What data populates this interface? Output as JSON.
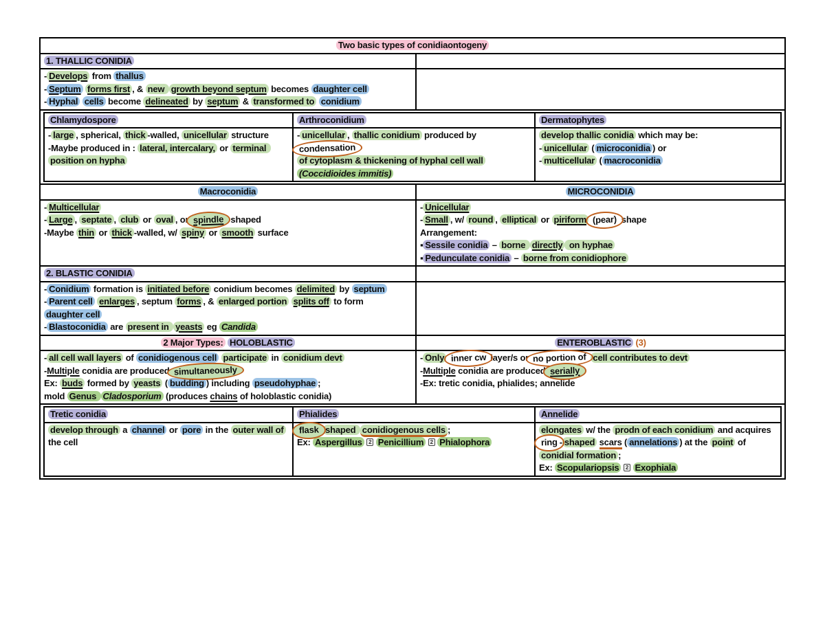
{
  "colors": {
    "green": "#c6e0b4",
    "genus_green": "#a9d18e",
    "blue": "#9dc3e6",
    "purple": "#b7b3da",
    "pink": "#f8c3d3",
    "orange": "#c0611f"
  },
  "title": [
    {
      "t": "Two basic types of conidiaontogeny",
      "h": "k"
    }
  ],
  "thallic": {
    "header": [
      {
        "t": "1. THALLIC CONIDIA",
        "h": "p"
      }
    ],
    "body": [
      [
        {
          "t": "-"
        },
        {
          "t": "Develops",
          "h": "g",
          "u": 1
        },
        {
          "t": " from "
        },
        {
          "t": "thallus",
          "h": "b"
        }
      ],
      [
        {
          "t": "-"
        },
        {
          "t": "Septum",
          "h": "b",
          "u": 1
        },
        {
          "t": " "
        },
        {
          "t": "forms first",
          "h": "g",
          "u": 1
        },
        {
          "t": ", & "
        },
        {
          "t": "new ",
          "h": "g"
        },
        {
          "t": "growth beyond septum",
          "h": "g",
          "u": 1
        },
        {
          "t": " becomes "
        },
        {
          "t": "daughter cell",
          "h": "b"
        }
      ],
      [
        {
          "t": "-"
        },
        {
          "t": "Hyphal",
          "h": "b"
        },
        {
          "t": " "
        },
        {
          "t": "cells",
          "h": "b"
        },
        {
          "t": " become "
        },
        {
          "t": "delineated",
          "h": "g",
          "u": 1
        },
        {
          "t": " by "
        },
        {
          "t": "septum",
          "h": "g",
          "u": 1
        },
        {
          "t": " & "
        },
        {
          "t": "transformed to",
          "h": "g"
        },
        {
          "t": " "
        },
        {
          "t": "conidium",
          "h": "b"
        }
      ]
    ]
  },
  "sub_top": {
    "columns": [
      {
        "header": [
          {
            "t": "Chlamydospore",
            "h": "p"
          }
        ],
        "body": [
          [
            {
              "t": "-"
            },
            {
              "t": "large",
              "h": "g"
            },
            {
              "t": ", spherical, "
            },
            {
              "t": "thick",
              "h": "g"
            },
            {
              "t": "-walled, "
            },
            {
              "t": "unicellular",
              "h": "g"
            },
            {
              "t": " structure"
            }
          ],
          [
            {
              "t": "-Maybe produced in : "
            },
            {
              "t": "lateral, intercalary,",
              "h": "g"
            },
            {
              "t": " or "
            },
            {
              "t": "terminal position on hypha",
              "h": "g"
            }
          ]
        ]
      },
      {
        "header": [
          {
            "t": "Arthroconidium",
            "h": "p"
          }
        ],
        "body": [
          [
            {
              "t": "-"
            },
            {
              "t": "unicellular",
              "h": "g"
            },
            {
              "t": ", "
            },
            {
              "t": "thallic conidium",
              "h": "g"
            },
            {
              "t": " produced by "
            },
            {
              "t": "condensation",
              "c": 1
            }
          ],
          [
            {
              "t": "of cytoplasm & thickening of hyphal cell wall",
              "h": "g"
            }
          ],
          [
            {
              "t": "(Coccidioides immitis)",
              "h": "G",
              "i": 1
            }
          ]
        ]
      },
      {
        "header": [
          {
            "t": "Dermatophytes",
            "h": "p"
          }
        ],
        "body": [
          [
            {
              "t": "develop thallic conidia",
              "h": "g"
            },
            {
              "t": " which may be:"
            }
          ],
          [
            {
              "t": "-"
            },
            {
              "t": "unicellular",
              "h": "g"
            },
            {
              "t": " ("
            },
            {
              "t": "microconidia",
              "h": "b"
            },
            {
              "t": ") or"
            }
          ],
          [
            {
              "t": "-"
            },
            {
              "t": "multicellular",
              "h": "g"
            },
            {
              "t": " ("
            },
            {
              "t": "macroconidia",
              "h": "b"
            }
          ]
        ]
      }
    ]
  },
  "macro": {
    "header": [
      {
        "t": "Macroconidia",
        "h": "b"
      }
    ],
    "body": [
      [
        {
          "t": "-"
        },
        {
          "t": "Multicellular",
          "h": "g",
          "u": 1
        }
      ],
      [
        {
          "t": "-"
        },
        {
          "t": "Large",
          "h": "g",
          "u": 1
        },
        {
          "t": ", "
        },
        {
          "t": "septate",
          "h": "g"
        },
        {
          "t": ", "
        },
        {
          "t": "club",
          "h": "g"
        },
        {
          "t": " or "
        },
        {
          "t": "oval",
          "h": "g"
        },
        {
          "t": ", or "
        },
        {
          "t": "spindle",
          "h": "g",
          "u": 1,
          "c": 1
        },
        {
          "t": "- shaped"
        }
      ],
      [
        {
          "t": "-Maybe "
        },
        {
          "t": "thin",
          "h": "g",
          "u": 1
        },
        {
          "t": " or "
        },
        {
          "t": "thick",
          "h": "g",
          "u": 1
        },
        {
          "t": "-walled, w/ "
        },
        {
          "t": "spiny",
          "h": "g",
          "u": 1
        },
        {
          "t": " or "
        },
        {
          "t": "smooth",
          "h": "g",
          "u": 1
        },
        {
          "t": " surface"
        }
      ]
    ]
  },
  "micro": {
    "header": [
      {
        "t": "MICROCONIDIA",
        "h": "b"
      }
    ],
    "body": [
      [
        {
          "t": "-"
        },
        {
          "t": "Unicellular",
          "h": "g",
          "u": 1
        }
      ],
      [
        {
          "t": "-"
        },
        {
          "t": "Small",
          "h": "g",
          "u": 1
        },
        {
          "t": ", w/ "
        },
        {
          "t": "round",
          "h": "g"
        },
        {
          "t": ", "
        },
        {
          "t": "elliptical",
          "h": "g"
        },
        {
          "t": " or "
        },
        {
          "t": "piriform",
          "h": "g",
          "u": 1
        },
        {
          "t": " "
        },
        {
          "t": "(pear)",
          "c": 1
        },
        {
          "t": " shape"
        }
      ],
      [
        {
          "t": "Arrangement:"
        }
      ],
      [
        {
          "t": "▪"
        },
        {
          "t": "Sessile conidia",
          "h": "p"
        },
        {
          "t": " – "
        },
        {
          "t": "borne ",
          "h": "g"
        },
        {
          "t": "directly",
          "h": "g",
          "u": 1
        },
        {
          "t": " on hyphae",
          "h": "g"
        }
      ],
      [
        {
          "t": "▪"
        },
        {
          "t": "Pedunculate conidia",
          "h": "p"
        },
        {
          "t": " – "
        },
        {
          "t": "borne from conidiophore",
          "h": "g"
        }
      ]
    ]
  },
  "blastic": {
    "header": [
      {
        "t": "2. BLASTIC CONIDIA",
        "h": "p"
      }
    ],
    "body": [
      [
        {
          "t": "-"
        },
        {
          "t": "Conidium",
          "h": "b"
        },
        {
          "t": " formation is "
        },
        {
          "t": "initiated before",
          "h": "g",
          "u": 1
        },
        {
          "t": " conidium becomes "
        },
        {
          "t": "delimited",
          "h": "g",
          "u": 1
        },
        {
          "t": " by "
        },
        {
          "t": "septum",
          "h": "b"
        }
      ],
      [
        {
          "t": "-"
        },
        {
          "t": "Parent cell",
          "h": "b"
        },
        {
          "t": " "
        },
        {
          "t": "enlarges",
          "h": "g",
          "u": 1
        },
        {
          "t": ", septum "
        },
        {
          "t": "forms",
          "h": "g",
          "u": 1
        },
        {
          "t": ", & "
        },
        {
          "t": "enlarged portion",
          "h": "g"
        },
        {
          "t": " "
        },
        {
          "t": "splits off",
          "h": "g",
          "u": 1
        },
        {
          "t": " to form"
        }
      ],
      [
        {
          "t": "daughter cell",
          "h": "b"
        }
      ],
      [
        {
          "t": "-"
        },
        {
          "t": "Blastoconidia",
          "h": "b"
        },
        {
          "t": " are "
        },
        {
          "t": "present in ",
          "h": "g"
        },
        {
          "t": "yeasts",
          "h": "g",
          "u": 1
        },
        {
          "t": " eg "
        },
        {
          "t": "Candida",
          "h": "G",
          "i": 1
        }
      ]
    ]
  },
  "holoblastic": {
    "header": [
      {
        "t": "2 Major Types:",
        "h": "k"
      },
      {
        "t": " "
      },
      {
        "t": "HOLOBLASTIC",
        "h": "p"
      }
    ],
    "body": [
      [
        {
          "t": "-"
        },
        {
          "t": "all cell wall layers",
          "h": "g"
        },
        {
          "t": " of "
        },
        {
          "t": "conidiogenous cell",
          "h": "b"
        },
        {
          "t": " "
        },
        {
          "t": "participate",
          "h": "g"
        },
        {
          "t": " in "
        },
        {
          "t": "conidium devt",
          "h": "g"
        }
      ],
      [
        {
          "t": "-"
        },
        {
          "t": "Multiple",
          "u": 1
        },
        {
          "t": " conidia are produced "
        },
        {
          "t": "simultaneously",
          "h": "g",
          "c": 1
        }
      ],
      [
        {
          "t": "Ex: "
        },
        {
          "t": "buds",
          "h": "g",
          "u": 1
        },
        {
          "t": " formed by "
        },
        {
          "t": "yeasts",
          "h": "g"
        },
        {
          "t": " ("
        },
        {
          "t": "budding",
          "h": "b"
        },
        {
          "t": ") including "
        },
        {
          "t": "pseudohyphae",
          "h": "b"
        },
        {
          "t": ";"
        }
      ],
      [
        {
          "t": "mold "
        },
        {
          "t": "Genus ",
          "h": "G"
        },
        {
          "t": "Cladosporium",
          "h": "G",
          "i": 1
        },
        {
          "t": " (produces "
        },
        {
          "t": "chains",
          "u": 1
        },
        {
          "t": " of holoblastic conidia)"
        }
      ]
    ]
  },
  "enteroblastic": {
    "header": [
      {
        "t": "ENTEROBLASTIC",
        "h": "p"
      },
      {
        "t": " "
      },
      {
        "t": "(3)",
        "o": 1
      }
    ],
    "body": [
      [
        {
          "t": "-"
        },
        {
          "t": "Only",
          "h": "g"
        },
        {
          "t": " "
        },
        {
          "t": "inner cw",
          "c": 1
        },
        {
          "t": " layer/s or "
        },
        {
          "t": "no portion of",
          "c": 1
        },
        {
          "t": " "
        },
        {
          "t": "cell contributes to devt",
          "h": "g"
        }
      ],
      [
        {
          "t": "-"
        },
        {
          "t": "Multiple",
          "u": 1
        },
        {
          "t": " conidia are produced "
        },
        {
          "t": "serially",
          "h": "g",
          "u": 1,
          "c": 1
        }
      ],
      [
        {
          "t": "-Ex: tretic conidia, phialides; annelide"
        }
      ]
    ]
  },
  "sub_bottom": {
    "columns": [
      {
        "header": [
          {
            "t": "Tretic conidia",
            "h": "p"
          }
        ],
        "body": [
          [
            {
              "t": "develop through",
              "h": "g"
            },
            {
              "t": " a "
            },
            {
              "t": "channel",
              "h": "b"
            },
            {
              "t": " or "
            },
            {
              "t": "pore",
              "h": "b"
            },
            {
              "t": " in the "
            },
            {
              "t": "outer wall of",
              "h": "g"
            },
            {
              "t": " the cell"
            }
          ]
        ]
      },
      {
        "header": [
          {
            "t": "Phialides",
            "h": "p"
          }
        ],
        "body": [
          [
            {
              "t": "flask",
              "h": "g",
              "c": 1
            },
            {
              "t": " "
            },
            {
              "t": "shaped ",
              "h": "g"
            },
            {
              "t": "conidiogenous cells",
              "h": "g",
              "ou": 1
            },
            {
              "t": ";"
            }
          ],
          [
            {
              "t": "Ex: "
            },
            {
              "t": "Aspergillus",
              "h": "G"
            },
            {
              "t": " "
            },
            {
              "t": "2",
              "tf": 1
            },
            {
              "t": " "
            },
            {
              "t": "Penicillium",
              "h": "G"
            },
            {
              "t": " "
            },
            {
              "t": "2",
              "tf": 1
            },
            {
              "t": " "
            },
            {
              "t": "Phialophora",
              "h": "G"
            }
          ]
        ]
      },
      {
        "header": [
          {
            "t": "Annelide",
            "h": "p"
          }
        ],
        "body": [
          [
            {
              "t": "elongates",
              "h": "g"
            },
            {
              "t": " w/ the "
            },
            {
              "t": "prodn of each conidium",
              "h": "g"
            },
            {
              "t": " and acquires "
            },
            {
              "t": "ring",
              "c": 1
            },
            {
              "t": "-"
            },
            {
              "t": "shaped",
              "h": "g"
            },
            {
              "t": " "
            },
            {
              "t": "scars",
              "ou": 1
            },
            {
              "t": " ("
            },
            {
              "t": "annelations",
              "h": "b"
            },
            {
              "t": ") at the "
            },
            {
              "t": "point",
              "h": "g"
            },
            {
              "t": " of "
            },
            {
              "t": "conidial formation",
              "h": "g"
            },
            {
              "t": ";"
            }
          ],
          [
            {
              "t": "Ex: "
            },
            {
              "t": "Scopulariopsis",
              "h": "G"
            },
            {
              "t": " "
            },
            {
              "t": "2",
              "tf": 1
            },
            {
              "t": " "
            },
            {
              "t": "Exophiala",
              "h": "G"
            }
          ]
        ]
      }
    ]
  }
}
